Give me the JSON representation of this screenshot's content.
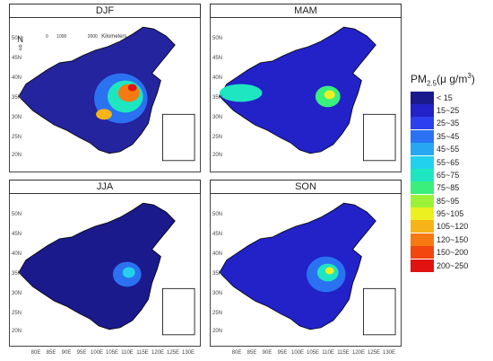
{
  "panels": [
    {
      "id": "djf",
      "title": "DJF",
      "scale": {
        "ticks": [
          "0",
          "250",
          "1000",
          "2000"
        ],
        "unit": "Kilometers"
      },
      "north": "N"
    },
    {
      "id": "mam",
      "title": "MAM"
    },
    {
      "id": "jja",
      "title": "JJA"
    },
    {
      "id": "son",
      "title": "SON"
    }
  ],
  "lat_ticks": [
    "50N",
    "45N",
    "40N",
    "35N",
    "30N",
    "25N",
    "20N"
  ],
  "lon_ticks": [
    "80E",
    "85E",
    "90E",
    "95E",
    "100E",
    "105E",
    "110E",
    "115E",
    "120E",
    "125E",
    "130E"
  ],
  "legend": {
    "title_main": "PM",
    "title_sub": "2.5",
    "title_unit": "(μ g/m",
    "title_sup": "3",
    "title_close": ")",
    "bins": [
      {
        "label": "< 15",
        "color": "#1a1a8c"
      },
      {
        "label": "15~25",
        "color": "#2222c8"
      },
      {
        "label": "25~35",
        "color": "#2b3ef0"
      },
      {
        "label": "35~45",
        "color": "#2a72f2"
      },
      {
        "label": "45~55",
        "color": "#27a6f2"
      },
      {
        "label": "55~65",
        "color": "#22d2ec"
      },
      {
        "label": "65~75",
        "color": "#1ee6c0"
      },
      {
        "label": "75~85",
        "color": "#3aef7c"
      },
      {
        "label": "85~95",
        "color": "#9cf238"
      },
      {
        "label": "95~105",
        "color": "#ecf020"
      },
      {
        "label": "105~120",
        "color": "#f6b418"
      },
      {
        "label": "120~150",
        "color": "#f57a12"
      },
      {
        "label": "150~200",
        "color": "#f2460e"
      },
      {
        "label": "200~250",
        "color": "#e01212"
      }
    ]
  }
}
